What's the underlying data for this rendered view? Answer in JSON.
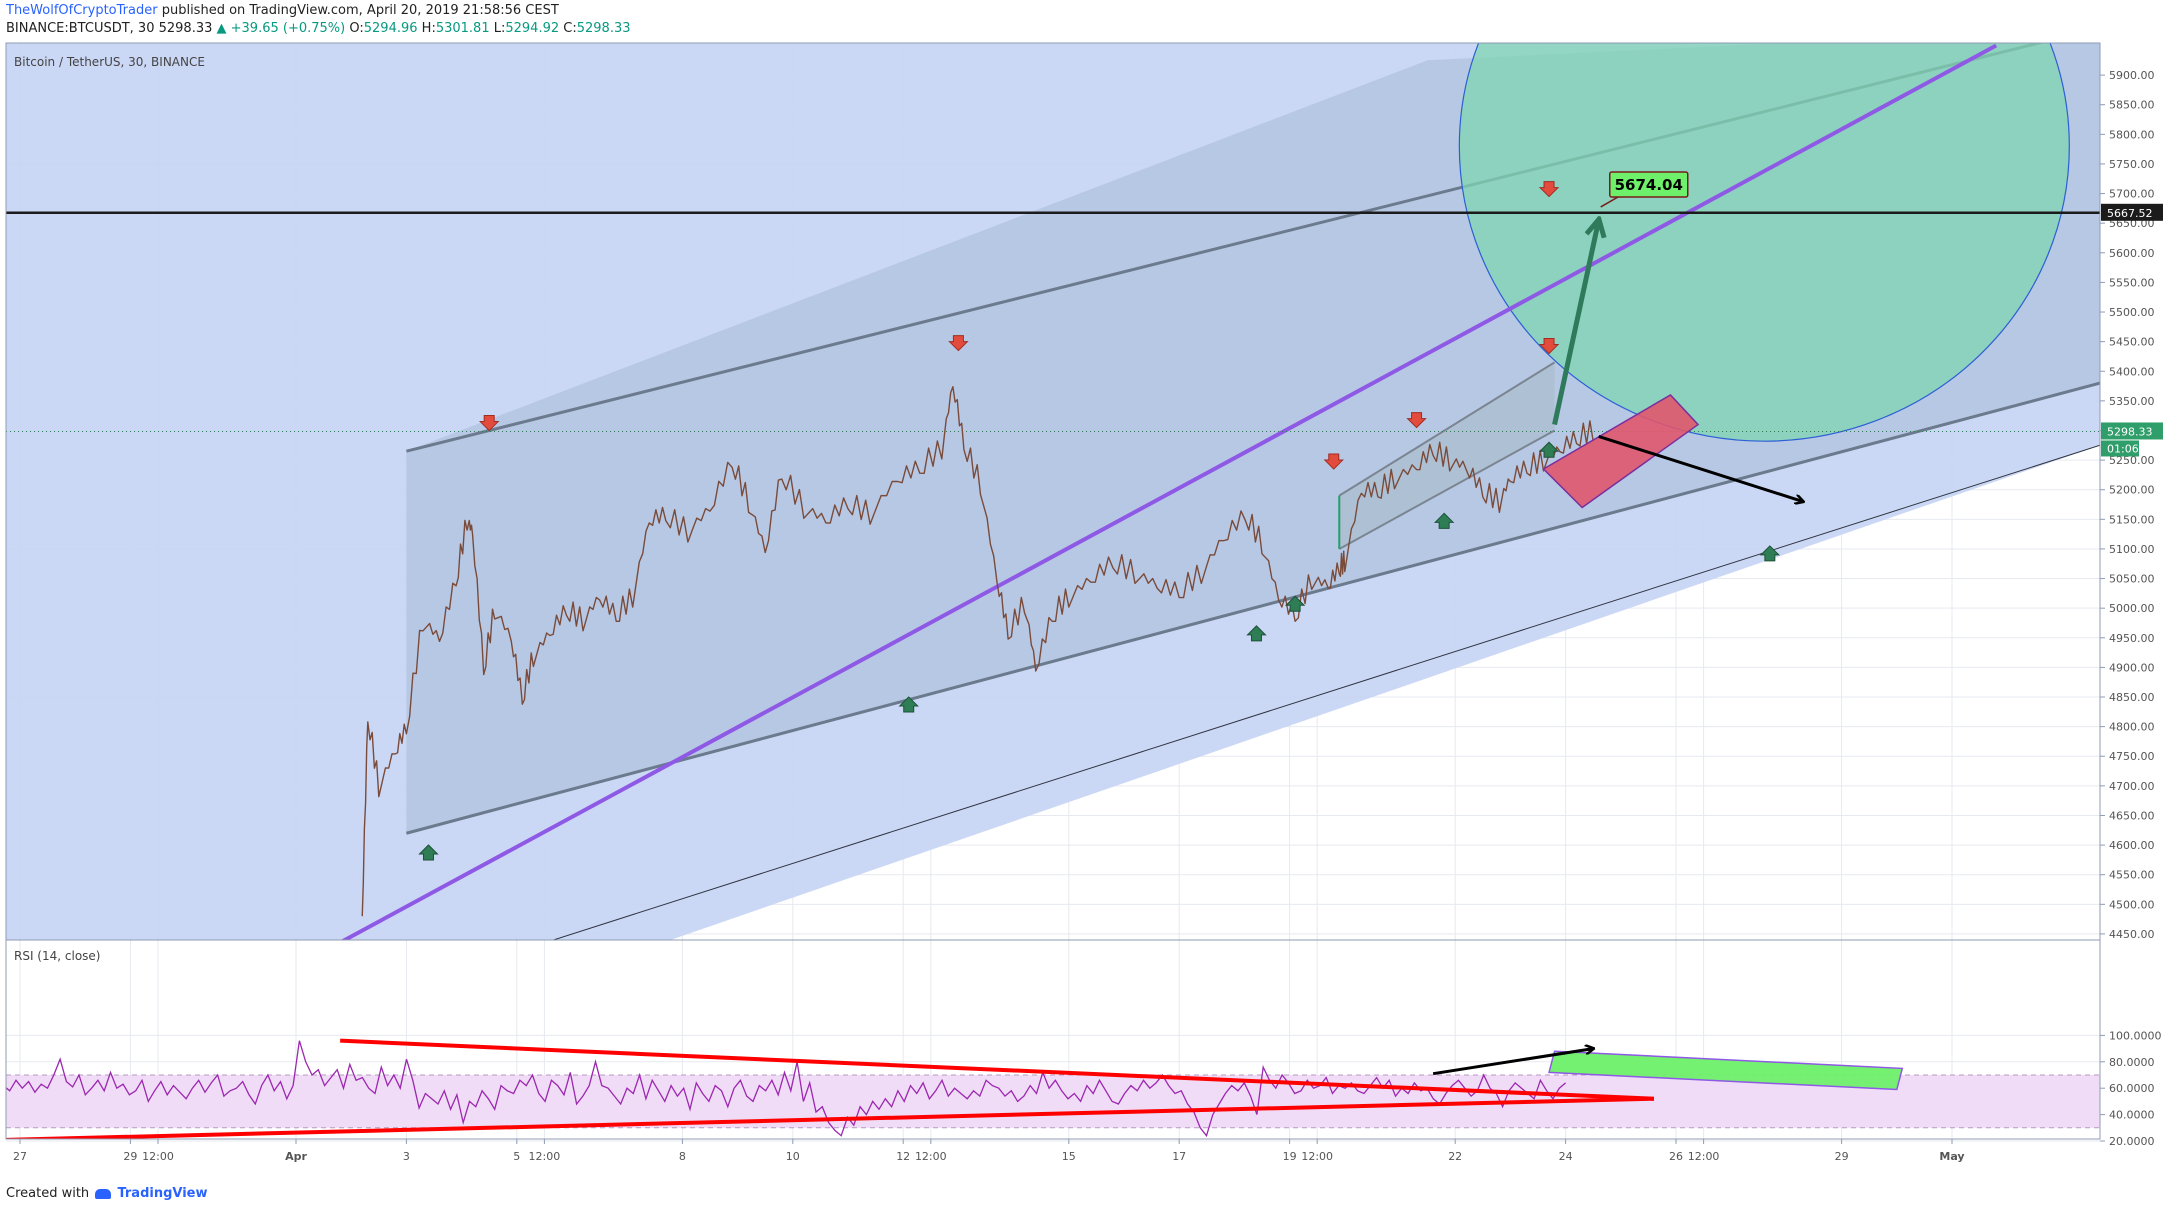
{
  "header": {
    "author": "TheWolfOfCryptoTrader",
    "published": "published on TradingView.com, April 20, 2019 21:58:56 CEST",
    "symbol": "BINANCE:BTCUSDT, 30",
    "last": "5298.33",
    "change": "▲ +39.65 (+0.75%)",
    "o_label": "O:",
    "o": "5294.96",
    "h_label": "H:",
    "h": "5301.81",
    "l_label": "L:",
    "l": "5294.92",
    "c_label": "C:",
    "c": "5298.33"
  },
  "pane_title": "Bitcoin / TetherUS, 30, BINANCE",
  "rsi_title": "RSI (14, close)",
  "price_label": "5298.33",
  "countdown": "01:06",
  "hline_label": "5667.52",
  "target_label": "5674.04",
  "footer": {
    "created": "Created with",
    "brand": "TradingView"
  },
  "colors": {
    "channel_fill": "#c5d4f4",
    "up_arrow": "#2f7d55",
    "down_arrow": "#e34b3c",
    "rsi_line": "#9c27b0",
    "trend_purple": "#8e59e5",
    "rsi_triangle": "#ff0000",
    "circle": "#7fd6b2",
    "red_box": "#e0566d",
    "green_box": "#6ef06a"
  },
  "chart_data": [
    {
      "type": "candlestick",
      "title": "Bitcoin / TetherUS, 30, BINANCE",
      "x_ticks": [
        "27",
        "29",
        "12:00",
        "Apr",
        "3",
        "5",
        "12:00",
        "8",
        "10",
        "12",
        "12:00",
        "15",
        "17",
        "19",
        "12:00",
        "22",
        "24",
        "26",
        "12:00",
        "29",
        "May"
      ],
      "y_ticks": [
        4450,
        4500,
        4550,
        4600,
        4650,
        4700,
        4750,
        4800,
        4850,
        4900,
        4950,
        5000,
        5050,
        5100,
        5150,
        5200,
        5250,
        5300,
        5350,
        5400,
        5450,
        5500,
        5550,
        5600,
        5650,
        5700,
        5750,
        5800,
        5850,
        5900
      ],
      "ylim": [
        4420,
        5920
      ],
      "close_path_day_price": [
        [
          6.2,
          4480
        ],
        [
          6.3,
          4820
        ],
        [
          6.5,
          4700
        ],
        [
          6.8,
          4760
        ],
        [
          7.0,
          4800
        ],
        [
          7.3,
          4980
        ],
        [
          7.6,
          4950
        ],
        [
          7.9,
          5050
        ],
        [
          8.1,
          5150
        ],
        [
          8.2,
          5130
        ],
        [
          8.4,
          4900
        ],
        [
          8.6,
          5000
        ],
        [
          8.9,
          4950
        ],
        [
          9.1,
          4850
        ],
        [
          9.3,
          4920
        ],
        [
          9.6,
          4960
        ],
        [
          9.9,
          5000
        ],
        [
          10.2,
          4980
        ],
        [
          10.5,
          5020
        ],
        [
          10.8,
          4990
        ],
        [
          11.1,
          5020
        ],
        [
          11.4,
          5150
        ],
        [
          11.7,
          5160
        ],
        [
          12.1,
          5130
        ],
        [
          12.5,
          5170
        ],
        [
          12.9,
          5250
        ],
        [
          13.2,
          5180
        ],
        [
          13.5,
          5100
        ],
        [
          13.8,
          5230
        ],
        [
          14.2,
          5170
        ],
        [
          14.6,
          5150
        ],
        [
          15.0,
          5180
        ],
        [
          15.4,
          5160
        ],
        [
          15.9,
          5220
        ],
        [
          16.3,
          5240
        ],
        [
          16.7,
          5270
        ],
        [
          16.9,
          5380
        ],
        [
          17.1,
          5280
        ],
        [
          17.4,
          5210
        ],
        [
          17.7,
          5050
        ],
        [
          17.9,
          4960
        ],
        [
          18.2,
          5010
        ],
        [
          18.4,
          4900
        ],
        [
          18.7,
          4990
        ],
        [
          19.0,
          5020
        ],
        [
          19.4,
          5050
        ],
        [
          19.8,
          5080
        ],
        [
          20.2,
          5060
        ],
        [
          20.6,
          5040
        ],
        [
          21.0,
          5030
        ],
        [
          21.4,
          5060
        ],
        [
          21.8,
          5120
        ],
        [
          22.2,
          5160
        ],
        [
          22.5,
          5110
        ],
        [
          22.8,
          5020
        ],
        [
          23.1,
          4990
        ],
        [
          23.4,
          5050
        ],
        [
          23.7,
          5040
        ],
        [
          23.9,
          5070
        ],
        [
          24.0,
          5080
        ],
        [
          24.3,
          5200
        ],
        [
          24.6,
          5200
        ],
        [
          24.9,
          5220
        ],
        [
          25.3,
          5240
        ],
        [
          25.6,
          5270
        ],
        [
          25.9,
          5250
        ],
        [
          26.2,
          5240
        ],
        [
          26.5,
          5200
        ],
        [
          26.8,
          5180
        ],
        [
          27.0,
          5220
        ],
        [
          27.3,
          5240
        ],
        [
          27.6,
          5250
        ],
        [
          27.9,
          5270
        ],
        [
          28.2,
          5290
        ],
        [
          28.5,
          5300
        ]
      ],
      "annotations": {
        "horizontal_line": 5667.52,
        "target": 5674.04,
        "down_arrow_points": [
          [
            8.5,
            5310
          ],
          [
            17.0,
            5445
          ],
          [
            23.8,
            5245
          ],
          [
            25.3,
            5315
          ],
          [
            27.7,
            5705
          ],
          [
            27.7,
            5440
          ]
        ],
        "up_arrow_points": [
          [
            7.4,
            4590
          ],
          [
            16.1,
            4840
          ],
          [
            22.4,
            4960
          ],
          [
            23.1,
            5010
          ],
          [
            25.8,
            5150
          ],
          [
            27.7,
            5270
          ],
          [
            31.7,
            5095
          ]
        ]
      }
    },
    {
      "type": "line",
      "title": "RSI (14, close)",
      "y_ticks": [
        20,
        40,
        60,
        80,
        100
      ],
      "ylim": [
        17,
        101
      ],
      "bands": [
        30,
        70
      ],
      "series": [
        {
          "values": [
            52,
            62,
            57,
            54,
            68,
            70,
            55,
            62,
            58,
            66,
            60,
            65,
            57,
            63,
            60,
            70,
            82,
            65,
            61,
            70,
            55,
            60,
            66,
            58,
            72,
            60,
            63,
            55,
            58,
            66,
            50,
            58,
            65,
            55,
            62,
            57,
            52,
            60,
            66,
            57,
            64,
            70,
            54,
            58,
            60,
            65,
            55,
            48,
            62,
            70,
            58,
            65,
            52,
            62,
            96,
            80,
            70,
            74,
            62,
            68,
            74,
            60,
            78,
            66,
            68,
            60,
            56,
            76,
            62,
            70,
            60,
            82,
            66,
            45,
            56,
            52,
            48,
            58,
            44,
            55,
            34,
            50,
            46,
            58,
            52,
            44,
            62,
            58,
            56,
            66,
            62,
            70,
            56,
            50,
            66,
            62,
            55,
            72,
            48,
            54,
            62,
            80,
            62,
            60,
            54,
            48,
            60,
            56,
            70,
            52,
            66,
            58,
            50,
            62,
            54,
            60,
            44,
            64,
            56,
            50,
            62,
            58,
            46,
            60,
            66,
            54,
            50,
            62,
            58,
            66,
            55,
            72,
            58,
            80,
            50,
            64,
            42,
            46,
            34,
            28,
            24,
            38,
            32,
            46,
            40,
            50,
            44,
            52,
            46,
            58,
            50,
            62,
            56,
            64,
            52,
            58,
            66,
            54,
            60,
            56,
            52,
            58,
            54,
            66,
            62,
            60,
            54,
            58,
            50,
            54,
            62,
            56,
            72,
            60,
            66,
            58,
            52,
            56,
            50,
            62,
            56,
            66,
            58,
            50,
            48,
            56,
            62,
            58,
            66,
            60,
            64,
            70,
            62,
            56,
            58,
            48,
            42,
            30,
            24,
            40,
            48,
            56,
            62,
            58,
            64,
            54,
            40,
            76,
            66,
            60,
            70,
            64,
            56,
            58,
            66,
            60,
            62,
            68,
            56,
            62,
            60,
            64,
            58,
            56,
            62,
            68,
            60,
            66,
            54,
            60,
            56,
            64,
            58,
            60,
            52,
            48,
            56,
            62,
            66,
            60,
            54,
            58,
            70,
            60,
            56,
            46,
            58,
            64,
            60,
            56,
            52,
            66,
            58,
            52,
            60,
            64
          ]
        }
      ],
      "annotations": {
        "upper_triangle_line": [
          [
            5.8,
            96
          ],
          [
            29.6,
            52
          ]
        ],
        "lower_triangle_line": [
          [
            -1.1,
            20
          ],
          [
            29.6,
            52
          ]
        ],
        "target_arrow": [
          [
            25.6,
            71
          ],
          [
            28.5,
            90
          ]
        ]
      }
    }
  ]
}
